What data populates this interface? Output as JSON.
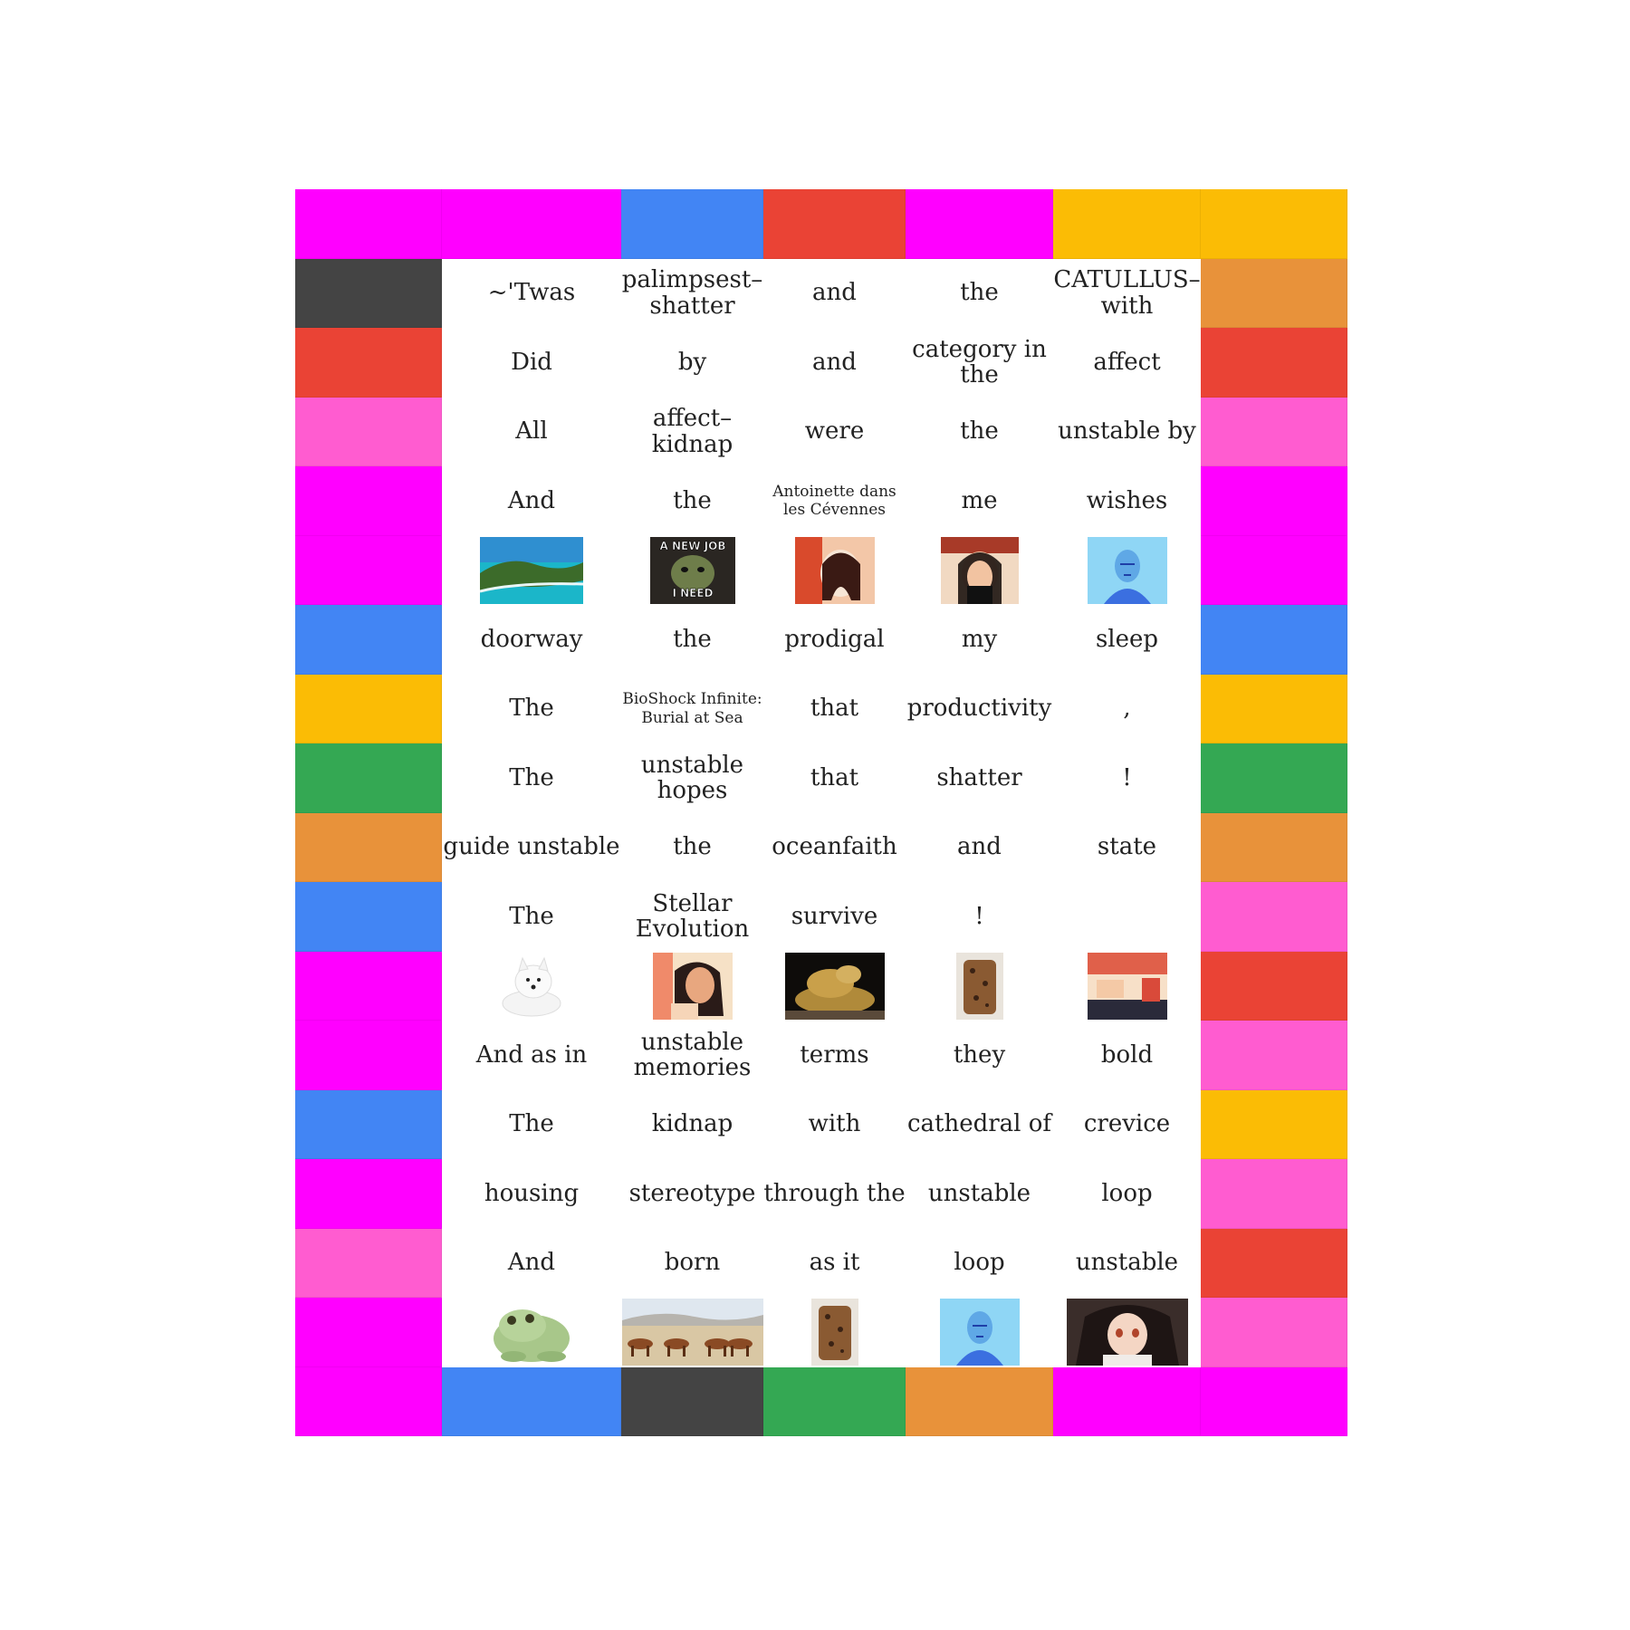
{
  "colors": {
    "magenta": "#ff00ff",
    "blue": "#4285f4",
    "red": "#ea4335",
    "yellow": "#fbbc05",
    "green": "#34a853",
    "orange": "#e8923a",
    "pink": "#ff5cd0",
    "dark": "#444444"
  },
  "border": {
    "top": [
      "magenta",
      "magenta",
      "blue",
      "red",
      "magenta",
      "yellow",
      "yellow"
    ],
    "bottom": [
      "magenta",
      "blue",
      "dark",
      "green",
      "orange",
      "magenta",
      "magenta"
    ],
    "left": [
      "dark",
      "red",
      "pink",
      "magenta",
      "magenta",
      "blue",
      "yellow",
      "green",
      "orange",
      "blue",
      "magenta",
      "magenta",
      "blue",
      "magenta",
      "pink",
      "magenta"
    ],
    "right": [
      "orange",
      "red",
      "pink",
      "magenta",
      "magenta",
      "blue",
      "yellow",
      "green",
      "orange",
      "pink",
      "red",
      "pink",
      "yellow",
      "pink",
      "red",
      "pink"
    ]
  },
  "grid": [
    [
      {
        "text": "~'Twas"
      },
      {
        "text": "palimpsest–shatter"
      },
      {
        "text": "and"
      },
      {
        "text": "the"
      },
      {
        "text": "CATULLUS–with"
      }
    ],
    [
      {
        "text": "Did"
      },
      {
        "text": "by"
      },
      {
        "text": "and"
      },
      {
        "text": "category in the"
      },
      {
        "text": "affect"
      }
    ],
    [
      {
        "text": "All"
      },
      {
        "text": "affect–kidnap"
      },
      {
        "text": "were"
      },
      {
        "text": "the"
      },
      {
        "text": "unstable by"
      }
    ],
    [
      {
        "text": "And"
      },
      {
        "text": "the"
      },
      {
        "text": "Antoinette dans les Cévennes",
        "small": true
      },
      {
        "text": "me"
      },
      {
        "text": "wishes"
      }
    ],
    [
      {
        "img": "coastline-photo-icon"
      },
      {
        "img": "meme-photo-icon",
        "caption": "A NEW JOB\nI NEED"
      },
      {
        "img": "portrait-photo-icon"
      },
      {
        "img": "selfie-photo-icon"
      },
      {
        "img": "blue-portrait-photo-icon"
      }
    ],
    [
      {
        "text": "doorway"
      },
      {
        "text": "the"
      },
      {
        "text": "prodigal"
      },
      {
        "text": "my"
      },
      {
        "text": "sleep"
      }
    ],
    [
      {
        "text": "The"
      },
      {
        "text": "BioShock Infinite: Burial at Sea",
        "small": true
      },
      {
        "text": "that"
      },
      {
        "text": "productivity"
      },
      {
        "text": ","
      }
    ],
    [
      {
        "text": "The"
      },
      {
        "text": "unstable hopes"
      },
      {
        "text": "that"
      },
      {
        "text": "shatter"
      },
      {
        "text": "!"
      }
    ],
    [
      {
        "text": "guide unstable"
      },
      {
        "text": "the"
      },
      {
        "text": "oceanfaith"
      },
      {
        "text": "and"
      },
      {
        "text": "state"
      }
    ],
    [
      {
        "text": "The"
      },
      {
        "text": "Stellar Evolution"
      },
      {
        "text": "survive"
      },
      {
        "text": "!"
      },
      {
        "text": ""
      }
    ],
    [
      {
        "img": "white-dog-photo-icon"
      },
      {
        "img": "girl-portrait-photo-icon"
      },
      {
        "img": "frog-statue-photo-icon"
      },
      {
        "img": "bread-photo-icon"
      },
      {
        "img": "room-photo-icon"
      }
    ],
    [
      {
        "text": "And as in"
      },
      {
        "text": "unstable memories"
      },
      {
        "text": "terms"
      },
      {
        "text": "they"
      },
      {
        "text": "bold"
      }
    ],
    [
      {
        "text": "The"
      },
      {
        "text": "kidnap"
      },
      {
        "text": "with"
      },
      {
        "text": "cathedral of"
      },
      {
        "text": "crevice"
      }
    ],
    [
      {
        "text": "housing"
      },
      {
        "text": "stereotype"
      },
      {
        "text": "through the"
      },
      {
        "text": "unstable"
      },
      {
        "text": "loop"
      }
    ],
    [
      {
        "text": "And"
      },
      {
        "text": "born"
      },
      {
        "text": "as it"
      },
      {
        "text": "loop"
      },
      {
        "text": "unstable"
      }
    ],
    [
      {
        "img": "green-frog-photo-icon"
      },
      {
        "img": "horses-desert-photo-icon"
      },
      {
        "img": "bread-photo-icon"
      },
      {
        "img": "blue-portrait-photo-icon"
      },
      {
        "img": "anime-girl-photo-icon"
      }
    ]
  ]
}
